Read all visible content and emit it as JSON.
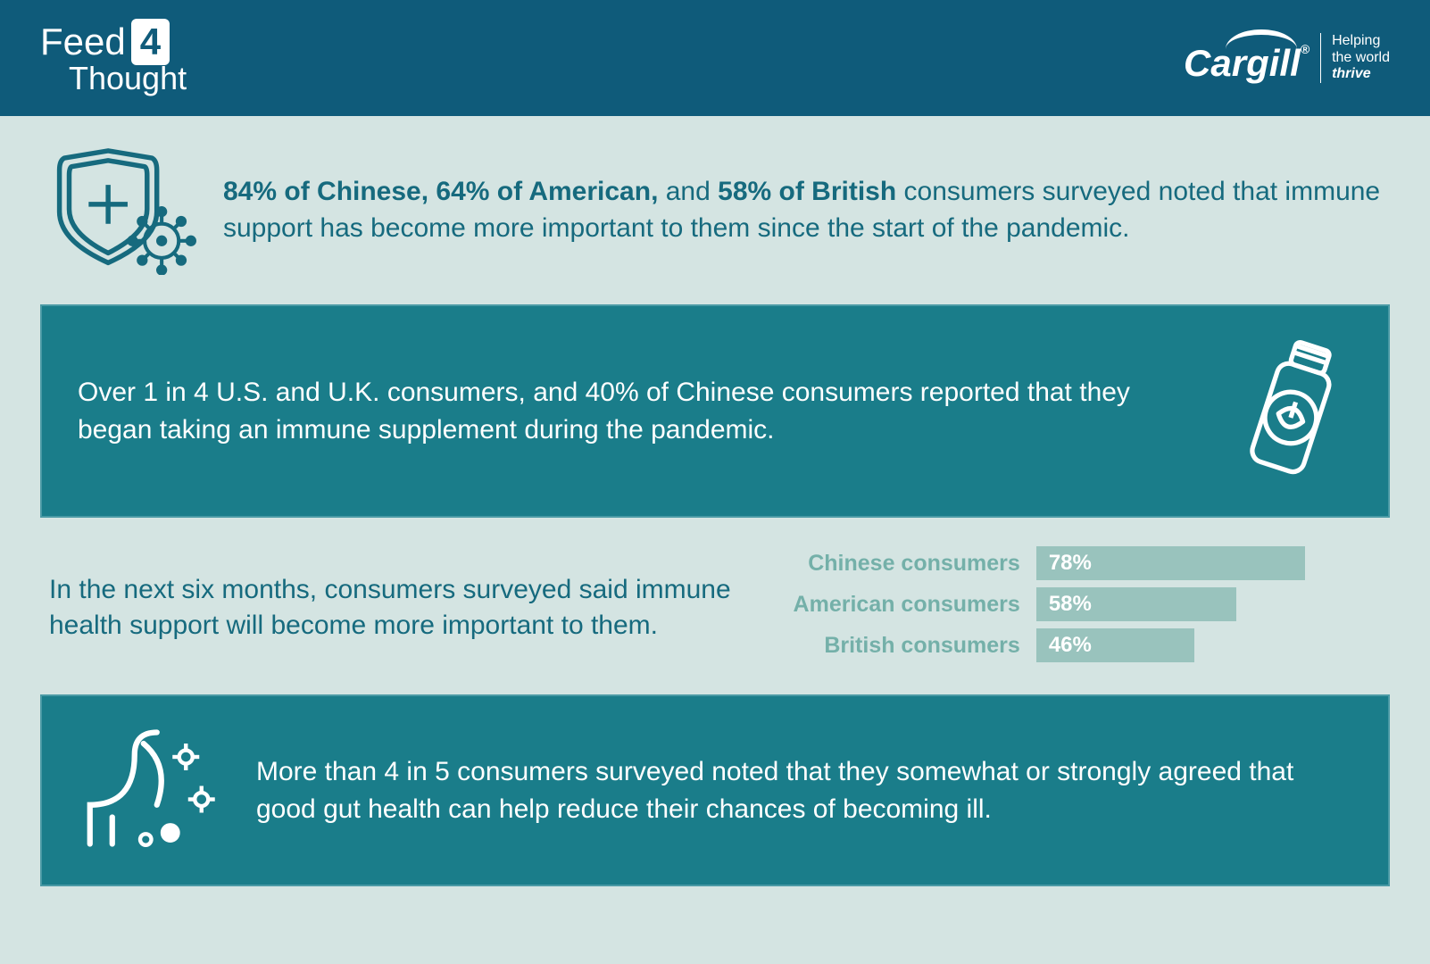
{
  "header": {
    "logo_left_word1": "Feed",
    "logo_left_box": "4",
    "logo_left_word2": "Thought",
    "logo_right_name": "Cargill",
    "logo_right_reg": "®",
    "logo_right_tag_line1": "Helping",
    "logo_right_tag_line2": "the world",
    "logo_right_tag_line3": "thrive"
  },
  "section1": {
    "pct1": "84% of Chinese,",
    "pct2": "64% of American,",
    "conj": " and ",
    "pct3": "58% of British",
    "rest": " consumers surveyed noted that immune support has become more important to them since the start of the pandemic."
  },
  "section2": {
    "text": "Over 1 in 4 U.S. and U.K. consumers, and 40% of Chinese consumers reported that they began taking an immune supplement during the pandemic."
  },
  "section3": {
    "text": "In the next six months, consumers surveyed said immune health support will become more important to them.",
    "chart": {
      "type": "bar",
      "bar_color": "#99c3bd",
      "label_color": "#74b0a9",
      "value_text_color": "#ffffff",
      "label_fontsize": 25,
      "value_fontsize": 24,
      "max_value": 100,
      "rows": [
        {
          "label": "Chinese consumers",
          "value": 78,
          "display": "78%"
        },
        {
          "label": "American consumers",
          "value": 58,
          "display": "58%"
        },
        {
          "label": "British consumers",
          "value": 46,
          "display": "46%"
        }
      ]
    }
  },
  "section4": {
    "text": "More than 4 in 5 consumers surveyed noted that they somewhat or strongly agreed that good gut health can help reduce their chances of becoming ill."
  },
  "colors": {
    "header_bg": "#0f5b7a",
    "page_bg": "#d4e4e2",
    "teal_block_bg": "#1a7d8a",
    "teal_block_border": "#4a9aa5",
    "body_text": "#166a7e"
  }
}
